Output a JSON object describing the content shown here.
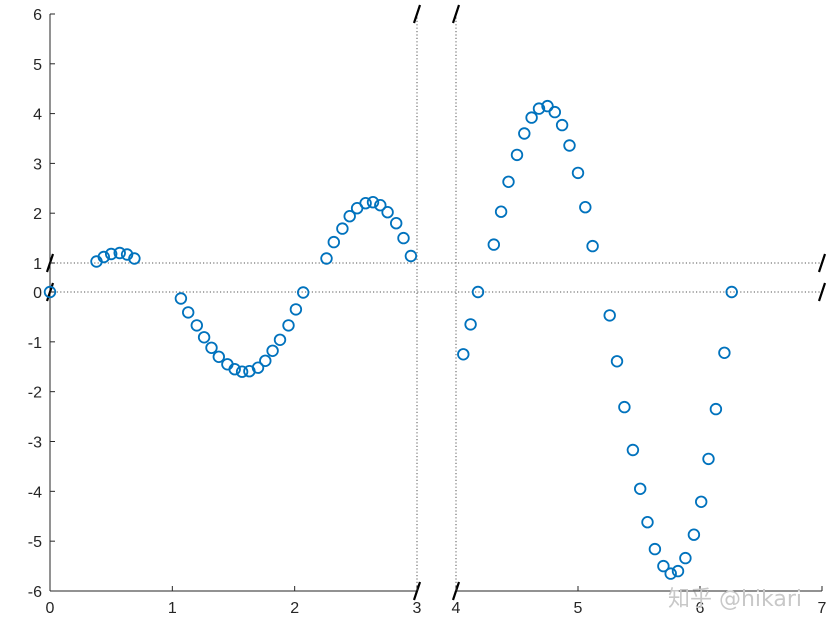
{
  "chart_data": {
    "type": "scatter",
    "marker": "circle-open",
    "colors": {
      "series": "#0072BD",
      "axes": "#262626"
    },
    "grid": false,
    "legend": "none",
    "axis_breaks": {
      "x": [
        3,
        4
      ],
      "y": [
        0,
        1
      ]
    },
    "xlim": [
      0,
      7
    ],
    "ylim": [
      -6,
      6
    ],
    "x_ticks": [
      "0",
      "1",
      "2",
      "3",
      "4",
      "5",
      "6",
      "7"
    ],
    "y_ticks": [
      "6",
      "5",
      "4",
      "3",
      "2",
      "1",
      "0",
      "-1",
      "-2",
      "-3",
      "-4",
      "-5",
      "-6"
    ],
    "watermark": "知乎 @hikari",
    "series": [
      {
        "x": [
          0.0,
          0.38,
          0.44,
          0.5,
          0.57,
          0.63,
          0.69,
          1.07,
          1.13,
          1.2,
          1.26,
          1.32,
          1.38,
          1.45,
          1.51,
          1.57,
          1.63,
          1.7,
          1.76,
          1.82,
          1.88,
          1.95,
          2.01,
          2.07,
          2.26,
          2.32,
          2.39,
          2.45,
          2.51,
          2.58,
          2.64,
          2.7,
          2.76,
          2.83,
          2.89,
          2.95,
          4.06,
          4.12,
          4.18,
          4.31,
          4.37,
          4.43,
          4.5,
          4.56,
          4.62,
          4.68,
          4.75,
          4.81,
          4.87,
          4.93,
          5.0,
          5.06,
          5.12,
          5.26,
          5.32,
          5.38,
          5.45,
          5.51,
          5.57,
          5.63,
          5.7,
          5.76,
          5.82,
          5.88,
          5.95,
          6.01,
          6.07,
          6.13,
          6.2,
          6.26
        ],
        "y": [
          0.0,
          1.03,
          1.12,
          1.18,
          1.2,
          1.17,
          1.09,
          -0.13,
          -0.41,
          -0.67,
          -0.91,
          -1.12,
          -1.3,
          -1.45,
          -1.55,
          -1.6,
          -1.59,
          -1.52,
          -1.38,
          -1.18,
          -0.96,
          -0.67,
          -0.35,
          -0.01,
          1.09,
          1.42,
          1.69,
          1.94,
          2.1,
          2.2,
          2.22,
          2.16,
          2.02,
          1.8,
          1.5,
          1.14,
          -1.25,
          -0.65,
          0.0,
          1.37,
          2.03,
          2.63,
          3.17,
          3.6,
          3.92,
          4.1,
          4.15,
          4.03,
          3.77,
          3.36,
          2.81,
          2.12,
          1.34,
          -0.47,
          -1.39,
          -2.31,
          -3.17,
          -3.95,
          -4.62,
          -5.16,
          -5.5,
          -5.65,
          -5.6,
          -5.34,
          -4.87,
          -4.21,
          -3.35,
          -2.35,
          -1.22,
          0.0
        ]
      }
    ]
  }
}
